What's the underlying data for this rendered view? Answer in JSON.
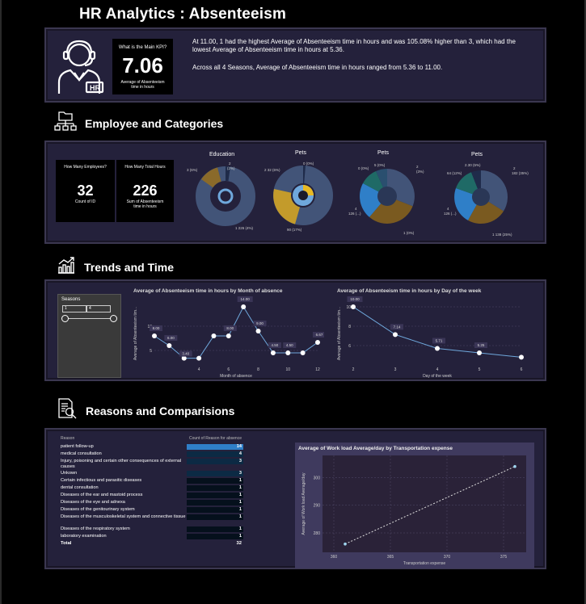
{
  "page": {
    "title": "HR Analytics : Absenteeism"
  },
  "kpi_card": {
    "question": "What is the Main KPI?",
    "value": "7.06",
    "label": "Average of Absenteeism time in hours",
    "insight_1": "At 11.00, 1 had the highest Average of Absenteeism time in hours and was 105.08% higher than 3, which had the lowest Average of Absenteeism time in hours at 5.36.",
    "insight_2": "Across all 4 Seasons, Average of Absenteeism time in hours ranged from 5.36 to 11.00."
  },
  "sections": {
    "employee": "Employee and Categories",
    "trends": "Trends and Time",
    "reasons": "Reasons and Comparisions"
  },
  "employee_card": {
    "employees_q": "How Many Employees?",
    "employees_value": "32",
    "employees_label": "Count of ID",
    "hours_q": "How Many Total Hours",
    "hours_value": "226",
    "hours_label": "Sum of Absenteeism time in hours"
  },
  "donuts": [
    {
      "title": "Education",
      "labels": [
        "2",
        "(2%)",
        "3 (6%)",
        "1 226 (4%)"
      ]
    },
    {
      "title": "Pets",
      "labels": [
        "0 (0%)",
        "2 32 (6%)",
        "90 (17%)"
      ]
    },
    {
      "title": "Pets",
      "labels": [
        "5 (0%)",
        "0 (0%)",
        "2",
        "(3%)",
        "4",
        "126 (...)",
        "1 (0%)"
      ]
    },
    {
      "title": "Pets",
      "labels": [
        "2.30 (5%)",
        "64 (12%)",
        "2",
        "182 (35%)",
        "4",
        "126 (...)",
        "1 138 (25%)"
      ]
    }
  ],
  "slicer": {
    "title": "Seasons",
    "from": "1",
    "to": "4"
  },
  "month_chart": {
    "title": "Average of Absenteeism time in hours by Month of absence",
    "ylabel": "Average of Absenteeism tim...",
    "xlabel": "Month of absence",
    "yticks": [
      "5",
      "10"
    ],
    "xticks": [
      "4",
      "6",
      "8",
      "10",
      "12"
    ]
  },
  "day_chart": {
    "title": "Average of Absenteeism time in hours by Day of the week",
    "ylabel": "Average of Absenteeism tim...",
    "xlabel": "Day of the week",
    "yticks": [
      "6",
      "8",
      "10"
    ],
    "xticks": [
      "2",
      "3",
      "4",
      "5",
      "6"
    ]
  },
  "reason_table": {
    "col1": "Reason",
    "col2": "Count of Reason for absence",
    "rows": [
      {
        "reason": "patient follow-up",
        "count": "14",
        "level": 1.0
      },
      {
        "reason": "medical consultation",
        "count": "4",
        "level": 0.29
      },
      {
        "reason": "Injury, poisoning and certain other consequences of external causes",
        "count": "3",
        "level": 0.21
      },
      {
        "reason": "Unkown",
        "count": "3",
        "level": 0.21
      },
      {
        "reason": "Certain infectious and parasitic diseases",
        "count": "1",
        "level": 0.07
      },
      {
        "reason": "dental consultation",
        "count": "1",
        "level": 0.07
      },
      {
        "reason": "Diseases of the ear and mastoid process",
        "count": "1",
        "level": 0.07
      },
      {
        "reason": "Diseases of the eye and adnexa",
        "count": "1",
        "level": 0.07
      },
      {
        "reason": "Diseases of the genitourinary system",
        "count": "1",
        "level": 0.07
      },
      {
        "reason": "Diseases of the musculoskeletal system and connective tissue",
        "count": "1",
        "level": 0.07
      },
      {
        "reason": "Diseases of the respiratory system",
        "count": "1",
        "level": 0.07
      },
      {
        "reason": "laboratory examination",
        "count": "1",
        "level": 0.07
      }
    ],
    "total_label": "Total",
    "total_value": "32"
  },
  "scatter_chart": {
    "title": "Average of Work load Average/day by Transportation expense",
    "ylabel": "Average of Work load Average/day",
    "xlabel": "Transportation expense",
    "yticks": [
      "280",
      "290",
      "300"
    ],
    "xticks": [
      "360",
      "365",
      "370",
      "375"
    ]
  },
  "chart_data": [
    {
      "type": "line",
      "title": "Average of Absenteeism time in hours by Month of absence",
      "xlabel": "Month of absence",
      "ylabel": "Average of Absenteeism tim...",
      "x": [
        1,
        2,
        3,
        4,
        5,
        6,
        7,
        8,
        9,
        10,
        11,
        12
      ],
      "values": [
        8.0,
        6.0,
        3.4,
        3.4,
        8.0,
        8.0,
        14.0,
        9.0,
        4.5,
        4.5,
        4.5,
        6.67
      ],
      "data_labels": [
        "8.00",
        "6.00",
        "3.40",
        "",
        "",
        "8.00",
        "14.00",
        "9.00",
        "4.50",
        "4.50",
        "",
        "6.67"
      ],
      "ylim": [
        2,
        15
      ],
      "grid": true
    },
    {
      "type": "line",
      "title": "Average of Absenteeism time in hours by Day of the week",
      "xlabel": "Day of the week",
      "ylabel": "Average of Absenteeism tim...",
      "x": [
        2,
        3,
        4,
        5,
        6
      ],
      "values": [
        10.0,
        7.14,
        5.71,
        5.25,
        4.8
      ],
      "data_labels": [
        "10.00",
        "7.14",
        "5.71",
        "5.25",
        ""
      ],
      "ylim": [
        4,
        10.5
      ],
      "grid": true
    },
    {
      "type": "scatter",
      "title": "Average of Work load Average/day by Transportation expense",
      "xlabel": "Transportation expense",
      "ylabel": "Average of Work load Average/day",
      "x": [
        361,
        376
      ],
      "values": [
        276,
        304
      ],
      "xlim": [
        359,
        377
      ],
      "ylim": [
        273,
        308
      ],
      "grid": true
    }
  ],
  "colors": {
    "accent": "#2f7fc8",
    "line": "#6fa8dc",
    "card": "#24213b",
    "plot": "#3a3556"
  }
}
